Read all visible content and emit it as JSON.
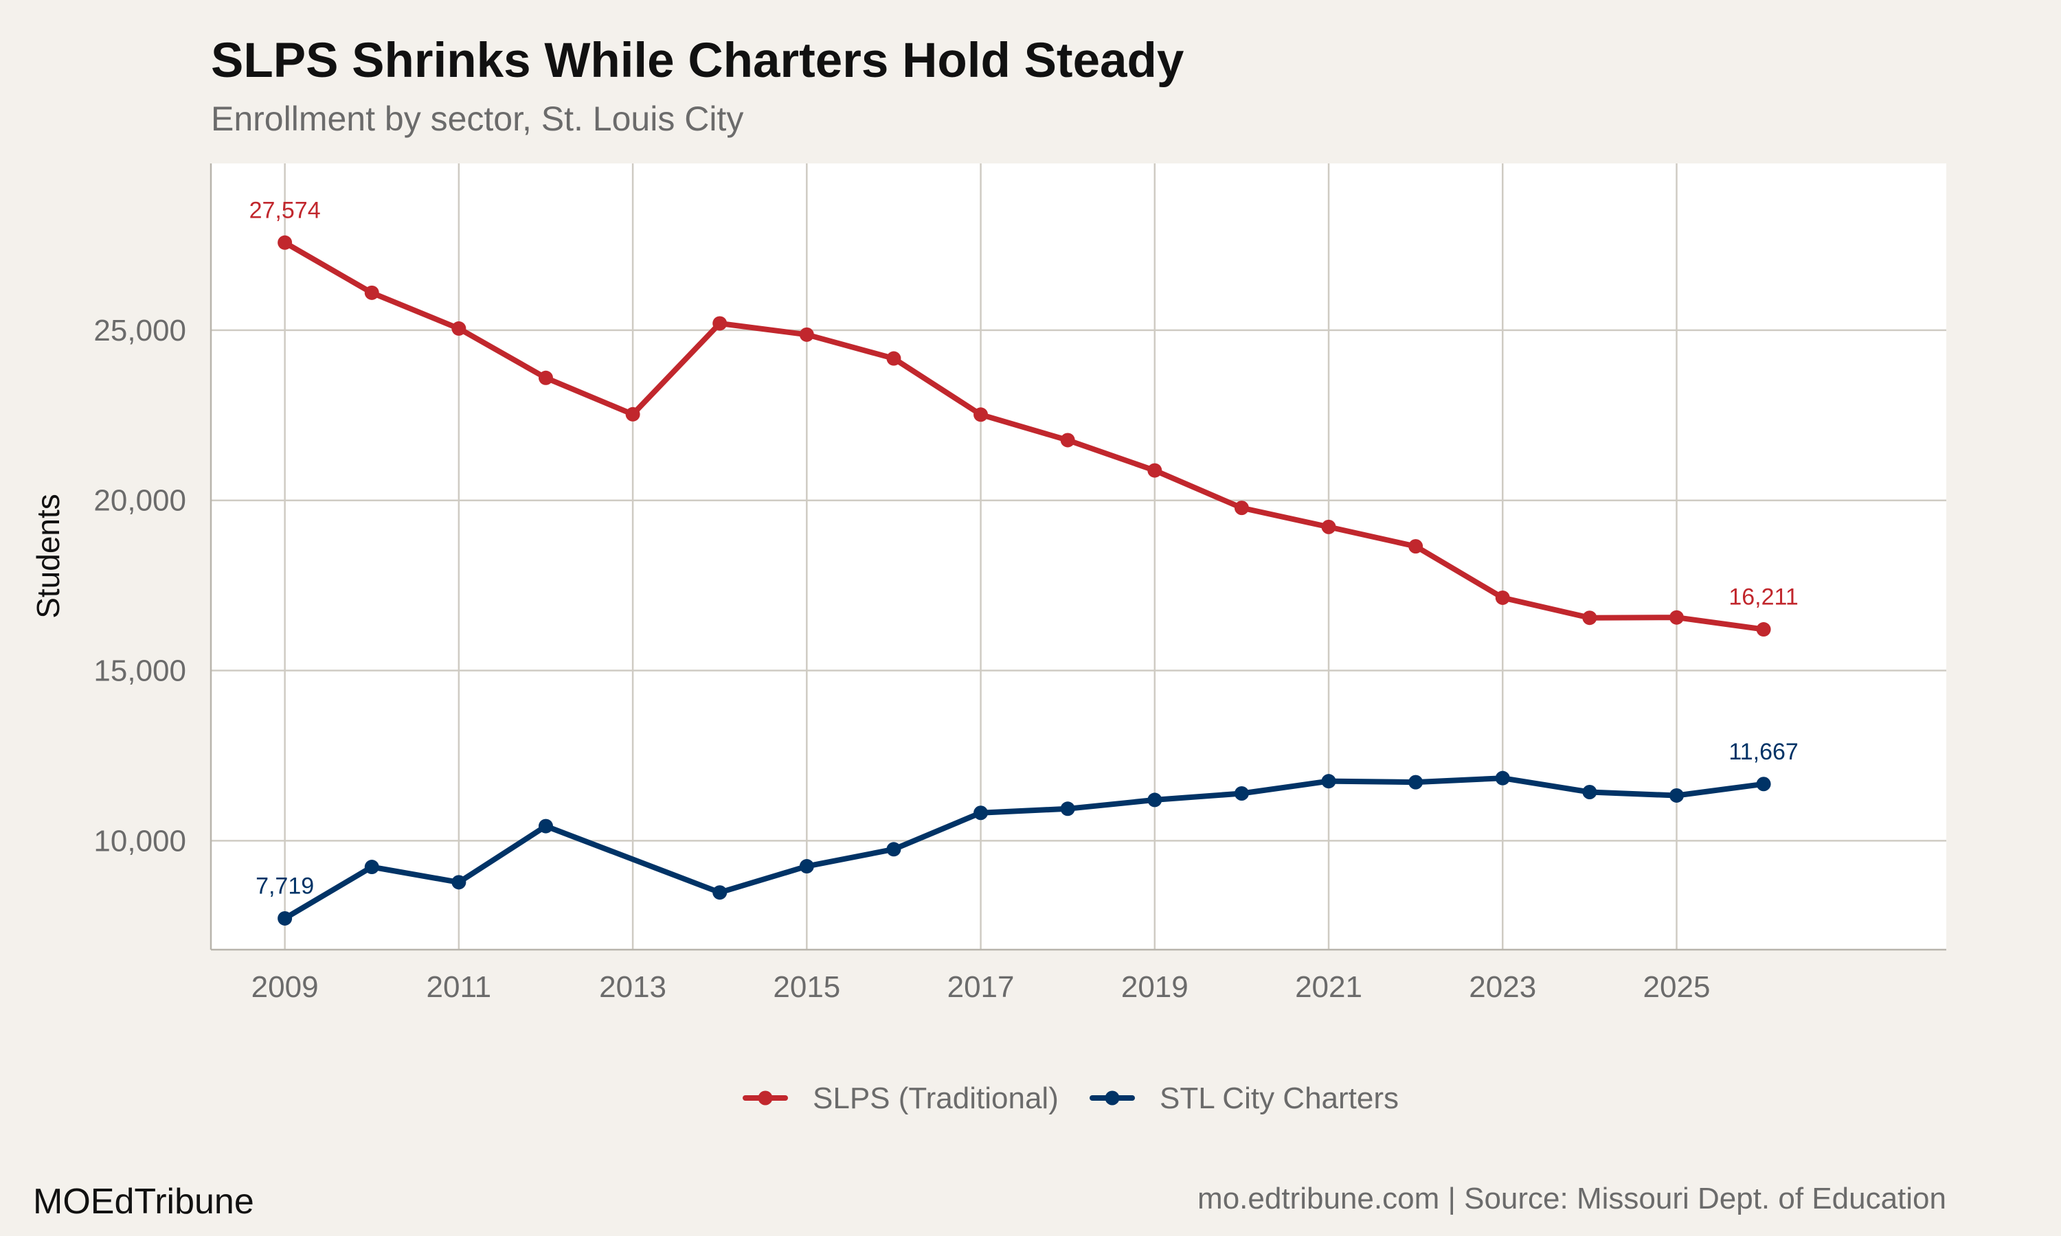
{
  "header": {
    "title": "SLPS Shrinks While Charters Hold Steady",
    "subtitle": "Enrollment by sector, St. Louis City"
  },
  "footer": {
    "brand": "MOEdTribune",
    "caption": "mo.edtribune.com | Source: Missouri Dept. of Education"
  },
  "colors": {
    "background": "#f4f1ec",
    "panel": "#ffffff",
    "slps": "#c1272d",
    "charters": "#003366"
  },
  "chart_data": {
    "type": "line",
    "title": "SLPS Shrinks While Charters Hold Steady",
    "subtitle": "Enrollment by sector, St. Louis City",
    "xlabel": "",
    "ylabel": "Students",
    "x": [
      2009,
      2010,
      2011,
      2012,
      2013,
      2014,
      2015,
      2016,
      2017,
      2018,
      2019,
      2020,
      2021,
      2022,
      2023,
      2024,
      2025,
      2026
    ],
    "xlim": [
      2008.15,
      2028.1
    ],
    "ylim": [
      6800,
      29900
    ],
    "xticks": [
      2009,
      2011,
      2013,
      2015,
      2017,
      2019,
      2021,
      2023,
      2025
    ],
    "xtick_labels": [
      "2009",
      "2011",
      "2013",
      "2015",
      "2017",
      "2019",
      "2021",
      "2023",
      "2025"
    ],
    "yticks": [
      10000,
      15000,
      20000,
      25000
    ],
    "ytick_labels": [
      "10,000",
      "15,000",
      "20,000",
      "25,000"
    ],
    "grid": true,
    "legend_position": "bottom",
    "series": [
      {
        "name": "SLPS (Traditional)",
        "color": "#c1272d",
        "values": [
          27574,
          26100,
          25050,
          23600,
          22530,
          25200,
          24870,
          24170,
          22520,
          21770,
          20880,
          19780,
          19220,
          18650,
          17140,
          16550,
          16560,
          16211
        ],
        "labels": [
          {
            "index": 0,
            "text": "27,574"
          },
          {
            "index": 17,
            "text": "16,211"
          }
        ]
      },
      {
        "name": "STL City Charters",
        "color": "#003366",
        "values": [
          7719,
          9230,
          8780,
          10430,
          null,
          8480,
          9250,
          9750,
          10820,
          10940,
          11200,
          11390,
          11750,
          11720,
          11840,
          11430,
          11330,
          11667
        ],
        "labels": [
          {
            "index": 0,
            "text": "7,719"
          },
          {
            "index": 17,
            "text": "11,667"
          }
        ]
      }
    ]
  }
}
